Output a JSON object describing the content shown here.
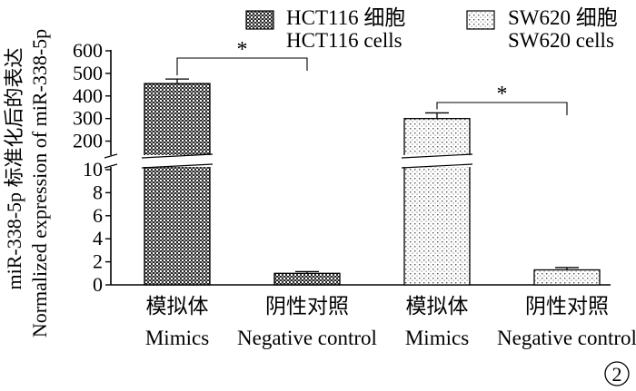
{
  "chart_data": {
    "type": "bar",
    "categories": [
      {
        "zh": "模拟体",
        "en": "Mimics"
      },
      {
        "zh": "阴性对照",
        "en": "Negative control"
      },
      {
        "zh": "模拟体",
        "en": "Mimics"
      },
      {
        "zh": "阴性对照",
        "en": "Negative control"
      }
    ],
    "series": [
      {
        "zh": "HCT116 细胞",
        "en": "HCT116 cells",
        "pattern": "dense"
      },
      {
        "zh": "SW620 细胞",
        "en": "SW620 cells",
        "pattern": "sparse"
      }
    ],
    "bars": [
      {
        "series": 0,
        "value": 455,
        "error": 20
      },
      {
        "series": 0,
        "value": 1.0,
        "error": 0.15
      },
      {
        "series": 1,
        "value": 300,
        "error": 25
      },
      {
        "series": 1,
        "value": 1.3,
        "error": 0.2
      }
    ],
    "ylabel_zh": "miR-338-5p 标准化后的表达",
    "ylabel_en": "Normalized expression of  miR-338-5p",
    "y_axis_break": {
      "lower": {
        "range": [
          0,
          10
        ],
        "ticks": [
          0,
          2,
          4,
          6,
          8,
          10
        ]
      },
      "upper": {
        "range": [
          150,
          600
        ],
        "ticks": [
          200,
          300,
          400,
          500,
          600
        ]
      }
    },
    "significance": [
      {
        "between": [
          0,
          1
        ],
        "label": "*"
      },
      {
        "between": [
          2,
          3
        ],
        "label": "*"
      }
    ],
    "panel_label": "2",
    "legend_position": "top"
  }
}
